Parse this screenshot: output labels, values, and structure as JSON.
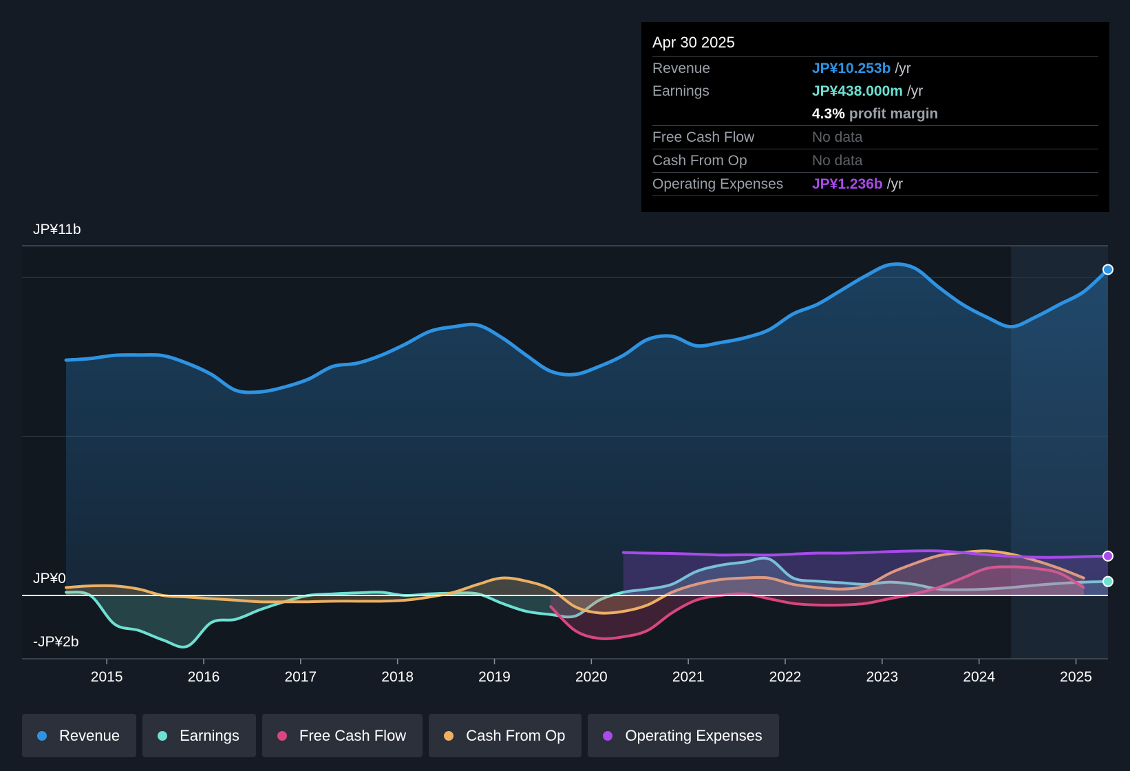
{
  "colors": {
    "background": "#151b24",
    "revenue": "#2e93e2",
    "earnings": "#6ee0d2",
    "free_cash_flow": "#d9467f",
    "cash_from_op": "#ecb063",
    "operating_expenses": "#a94aea"
  },
  "tooltip": {
    "date": "Apr 30 2025",
    "revenue_label": "Revenue",
    "revenue_value": "JP¥10.253b",
    "revenue_unit": "/yr",
    "earnings_label": "Earnings",
    "earnings_value": "JP¥438.000m",
    "earnings_unit": "/yr",
    "margin_value": "4.3%",
    "margin_label": "profit margin",
    "fcf_label": "Free Cash Flow",
    "fcf_value": "No data",
    "cfo_label": "Cash From Op",
    "cfo_value": "No data",
    "opex_label": "Operating Expenses",
    "opex_value": "JP¥1.236b",
    "opex_unit": "/yr"
  },
  "legend": [
    {
      "label": "Revenue",
      "color": "#2e93e2"
    },
    {
      "label": "Earnings",
      "color": "#6ee0d2"
    },
    {
      "label": "Free Cash Flow",
      "color": "#d9467f"
    },
    {
      "label": "Cash From Op",
      "color": "#ecb063"
    },
    {
      "label": "Operating Expenses",
      "color": "#a94aea"
    }
  ],
  "chart_data": {
    "type": "line",
    "title": "",
    "xlabel": "",
    "ylabel": "",
    "y_tick_labels": {
      "top": "JP¥11b",
      "zero": "JP¥0",
      "bottom": "-JP¥2b"
    },
    "ylim": [
      -2,
      11
    ],
    "xlim": [
      2014.58,
      2025.33
    ],
    "x_ticks": [
      "2015",
      "2016",
      "2017",
      "2018",
      "2019",
      "2020",
      "2021",
      "2022",
      "2023",
      "2024",
      "2025"
    ],
    "series": [
      {
        "name": "Revenue",
        "key": "revenue",
        "area": true,
        "points": [
          [
            2014.58,
            7.4
          ],
          [
            2014.83,
            7.45
          ],
          [
            2015.08,
            7.55
          ],
          [
            2015.33,
            7.56
          ],
          [
            2015.58,
            7.54
          ],
          [
            2015.83,
            7.3
          ],
          [
            2016.08,
            6.95
          ],
          [
            2016.33,
            6.45
          ],
          [
            2016.58,
            6.4
          ],
          [
            2016.83,
            6.55
          ],
          [
            2017.08,
            6.8
          ],
          [
            2017.33,
            7.2
          ],
          [
            2017.58,
            7.3
          ],
          [
            2017.83,
            7.55
          ],
          [
            2018.08,
            7.9
          ],
          [
            2018.33,
            8.3
          ],
          [
            2018.58,
            8.45
          ],
          [
            2018.83,
            8.5
          ],
          [
            2019.08,
            8.1
          ],
          [
            2019.33,
            7.55
          ],
          [
            2019.58,
            7.05
          ],
          [
            2019.83,
            6.95
          ],
          [
            2020.08,
            7.2
          ],
          [
            2020.33,
            7.55
          ],
          [
            2020.58,
            8.05
          ],
          [
            2020.83,
            8.15
          ],
          [
            2021.08,
            7.85
          ],
          [
            2021.33,
            7.95
          ],
          [
            2021.58,
            8.1
          ],
          [
            2021.83,
            8.35
          ],
          [
            2022.08,
            8.85
          ],
          [
            2022.33,
            9.15
          ],
          [
            2022.58,
            9.6
          ],
          [
            2022.83,
            10.05
          ],
          [
            2023.08,
            10.4
          ],
          [
            2023.33,
            10.3
          ],
          [
            2023.58,
            9.7
          ],
          [
            2023.83,
            9.15
          ],
          [
            2024.08,
            8.75
          ],
          [
            2024.33,
            8.45
          ],
          [
            2024.58,
            8.75
          ],
          [
            2024.83,
            9.15
          ],
          [
            2025.08,
            9.55
          ],
          [
            2025.33,
            10.25
          ]
        ]
      },
      {
        "name": "Earnings",
        "key": "earnings",
        "area": true,
        "points": [
          [
            2014.58,
            0.1
          ],
          [
            2014.83,
            0.0
          ],
          [
            2015.08,
            -0.9
          ],
          [
            2015.33,
            -1.1
          ],
          [
            2015.58,
            -1.4
          ],
          [
            2015.83,
            -1.6
          ],
          [
            2016.08,
            -0.85
          ],
          [
            2016.33,
            -0.75
          ],
          [
            2016.58,
            -0.45
          ],
          [
            2016.83,
            -0.2
          ],
          [
            2017.08,
            0.0
          ],
          [
            2017.33,
            0.05
          ],
          [
            2017.58,
            0.08
          ],
          [
            2017.83,
            0.1
          ],
          [
            2018.08,
            0.0
          ],
          [
            2018.33,
            0.05
          ],
          [
            2018.58,
            0.07
          ],
          [
            2018.83,
            0.05
          ],
          [
            2019.08,
            -0.25
          ],
          [
            2019.33,
            -0.5
          ],
          [
            2019.58,
            -0.6
          ],
          [
            2019.83,
            -0.65
          ],
          [
            2020.08,
            -0.15
          ],
          [
            2020.33,
            0.1
          ],
          [
            2020.58,
            0.2
          ],
          [
            2020.83,
            0.35
          ],
          [
            2021.08,
            0.75
          ],
          [
            2021.33,
            0.95
          ],
          [
            2021.58,
            1.05
          ],
          [
            2021.83,
            1.15
          ],
          [
            2022.08,
            0.55
          ],
          [
            2022.33,
            0.45
          ],
          [
            2022.58,
            0.4
          ],
          [
            2022.83,
            0.35
          ],
          [
            2023.08,
            0.42
          ],
          [
            2023.33,
            0.35
          ],
          [
            2023.58,
            0.2
          ],
          [
            2023.83,
            0.18
          ],
          [
            2024.08,
            0.2
          ],
          [
            2024.33,
            0.25
          ],
          [
            2024.58,
            0.32
          ],
          [
            2024.83,
            0.38
          ],
          [
            2025.08,
            0.42
          ],
          [
            2025.33,
            0.44
          ]
        ]
      },
      {
        "name": "Free Cash Flow",
        "key": "free_cash_flow",
        "area": true,
        "points": [
          [
            2019.58,
            -0.35
          ],
          [
            2019.83,
            -1.1
          ],
          [
            2020.08,
            -1.35
          ],
          [
            2020.33,
            -1.3
          ],
          [
            2020.58,
            -1.1
          ],
          [
            2020.83,
            -0.55
          ],
          [
            2021.08,
            -0.15
          ],
          [
            2021.33,
            0.0
          ],
          [
            2021.58,
            0.05
          ],
          [
            2021.83,
            -0.1
          ],
          [
            2022.08,
            -0.25
          ],
          [
            2022.33,
            -0.3
          ],
          [
            2022.58,
            -0.3
          ],
          [
            2022.83,
            -0.25
          ],
          [
            2023.08,
            -0.1
          ],
          [
            2023.33,
            0.05
          ],
          [
            2023.58,
            0.25
          ],
          [
            2023.83,
            0.55
          ],
          [
            2024.08,
            0.85
          ],
          [
            2024.33,
            0.9
          ],
          [
            2024.58,
            0.85
          ],
          [
            2024.83,
            0.7
          ],
          [
            2025.08,
            0.25
          ]
        ]
      },
      {
        "name": "Cash From Op",
        "key": "cash_from_op",
        "area": true,
        "points": [
          [
            2014.58,
            0.25
          ],
          [
            2014.83,
            0.3
          ],
          [
            2015.08,
            0.3
          ],
          [
            2015.33,
            0.2
          ],
          [
            2015.58,
            0.0
          ],
          [
            2015.83,
            -0.05
          ],
          [
            2016.08,
            -0.1
          ],
          [
            2016.33,
            -0.15
          ],
          [
            2016.58,
            -0.2
          ],
          [
            2016.83,
            -0.2
          ],
          [
            2017.08,
            -0.2
          ],
          [
            2017.33,
            -0.18
          ],
          [
            2017.58,
            -0.18
          ],
          [
            2017.83,
            -0.18
          ],
          [
            2018.08,
            -0.15
          ],
          [
            2018.33,
            -0.05
          ],
          [
            2018.58,
            0.1
          ],
          [
            2018.83,
            0.35
          ],
          [
            2019.08,
            0.55
          ],
          [
            2019.33,
            0.45
          ],
          [
            2019.58,
            0.2
          ],
          [
            2019.83,
            -0.35
          ],
          [
            2020.08,
            -0.55
          ],
          [
            2020.33,
            -0.5
          ],
          [
            2020.58,
            -0.3
          ],
          [
            2020.83,
            0.1
          ],
          [
            2021.08,
            0.35
          ],
          [
            2021.33,
            0.5
          ],
          [
            2021.58,
            0.55
          ],
          [
            2021.83,
            0.55
          ],
          [
            2022.08,
            0.35
          ],
          [
            2022.33,
            0.25
          ],
          [
            2022.58,
            0.2
          ],
          [
            2022.83,
            0.3
          ],
          [
            2023.08,
            0.7
          ],
          [
            2023.33,
            1.0
          ],
          [
            2023.58,
            1.25
          ],
          [
            2023.83,
            1.35
          ],
          [
            2024.08,
            1.4
          ],
          [
            2024.33,
            1.3
          ],
          [
            2024.58,
            1.1
          ],
          [
            2024.83,
            0.85
          ],
          [
            2025.08,
            0.55
          ]
        ]
      },
      {
        "name": "Operating Expenses",
        "key": "operating_expenses",
        "area": true,
        "points": [
          [
            2020.33,
            1.35
          ],
          [
            2020.58,
            1.33
          ],
          [
            2020.83,
            1.32
          ],
          [
            2021.08,
            1.3
          ],
          [
            2021.33,
            1.27
          ],
          [
            2021.58,
            1.28
          ],
          [
            2021.83,
            1.27
          ],
          [
            2022.08,
            1.3
          ],
          [
            2022.33,
            1.33
          ],
          [
            2022.58,
            1.33
          ],
          [
            2022.83,
            1.35
          ],
          [
            2023.08,
            1.38
          ],
          [
            2023.33,
            1.4
          ],
          [
            2023.58,
            1.4
          ],
          [
            2023.83,
            1.35
          ],
          [
            2024.08,
            1.28
          ],
          [
            2024.33,
            1.23
          ],
          [
            2024.58,
            1.2
          ],
          [
            2024.83,
            1.2
          ],
          [
            2025.08,
            1.22
          ],
          [
            2025.33,
            1.24
          ]
        ]
      }
    ]
  }
}
